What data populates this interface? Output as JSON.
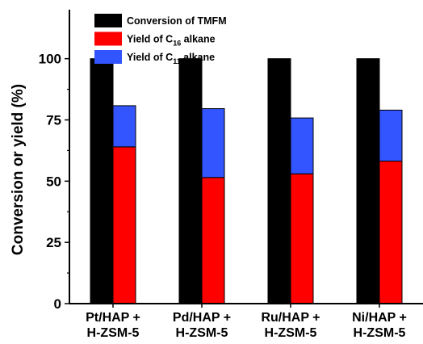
{
  "chart_data": {
    "type": "bar",
    "stacked_groups": [
      [
        "conversion"
      ],
      [
        "c16_yield",
        "c11_yield"
      ]
    ],
    "categories": [
      [
        "Pt/HAP +",
        "H-ZSM-5"
      ],
      [
        "Pd/HAP +",
        "H-ZSM-5"
      ],
      [
        "Ru/HAP +",
        "H-ZSM-5"
      ],
      [
        "Ni/HAP +",
        "H-ZSM-5"
      ]
    ],
    "series": [
      {
        "id": "conversion",
        "name": "Conversion of TMFM",
        "color": "#000000",
        "values": [
          100,
          100,
          100,
          100
        ]
      },
      {
        "id": "c16_yield",
        "name_parts": [
          "Yield of C",
          "16",
          " alkane"
        ],
        "color": "#ff0000",
        "values": [
          64,
          51.5,
          53,
          58.2
        ]
      },
      {
        "id": "c11_yield",
        "name_parts": [
          "Yield of C",
          "11",
          " alkane"
        ],
        "color": "#3355ff",
        "values": [
          16.8,
          28.1,
          22.8,
          20.8
        ]
      }
    ],
    "ylabel": "Conversion or yield (%)",
    "xlabel": "",
    "ylim": [
      0,
      120
    ],
    "yticks": [
      0,
      25,
      50,
      75,
      100
    ],
    "ytick_labels": [
      "0",
      "25",
      "50",
      "75",
      "100"
    ],
    "grid": false,
    "legend_position": "top-left"
  }
}
